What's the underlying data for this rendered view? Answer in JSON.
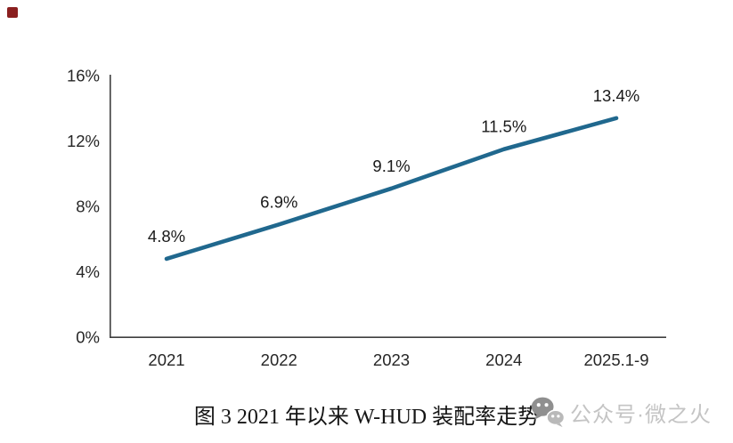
{
  "page": {
    "background": "#ffffff"
  },
  "corner_marker": {
    "color": "#8a1f1f"
  },
  "chart_data": {
    "type": "line",
    "title": "图 3 2021 年以来 W-HUD 装配率走势",
    "xlabel": "",
    "ylabel": "",
    "categories": [
      "2021",
      "2022",
      "2023",
      "2024",
      "2025.1-9"
    ],
    "values": [
      4.8,
      6.9,
      9.1,
      11.5,
      13.4
    ],
    "data_labels": [
      "4.8%",
      "6.9%",
      "9.1%",
      "11.5%",
      "13.4%"
    ],
    "y_ticks": [
      "0%",
      "4%",
      "8%",
      "12%",
      "16%"
    ],
    "y_tick_values": [
      0,
      4,
      8,
      12,
      16
    ],
    "ylim": [
      0,
      16
    ],
    "grid": "off",
    "legend": "none",
    "line_color": "#20688E",
    "axis_color": "#3f3f3f"
  },
  "caption": {
    "text": "图 3 2021 年以来 W-HUD 装配率走势"
  },
  "watermark": {
    "icon": "wechat-icon",
    "text": "公众号·微之火",
    "color": "#c4c4c4"
  }
}
